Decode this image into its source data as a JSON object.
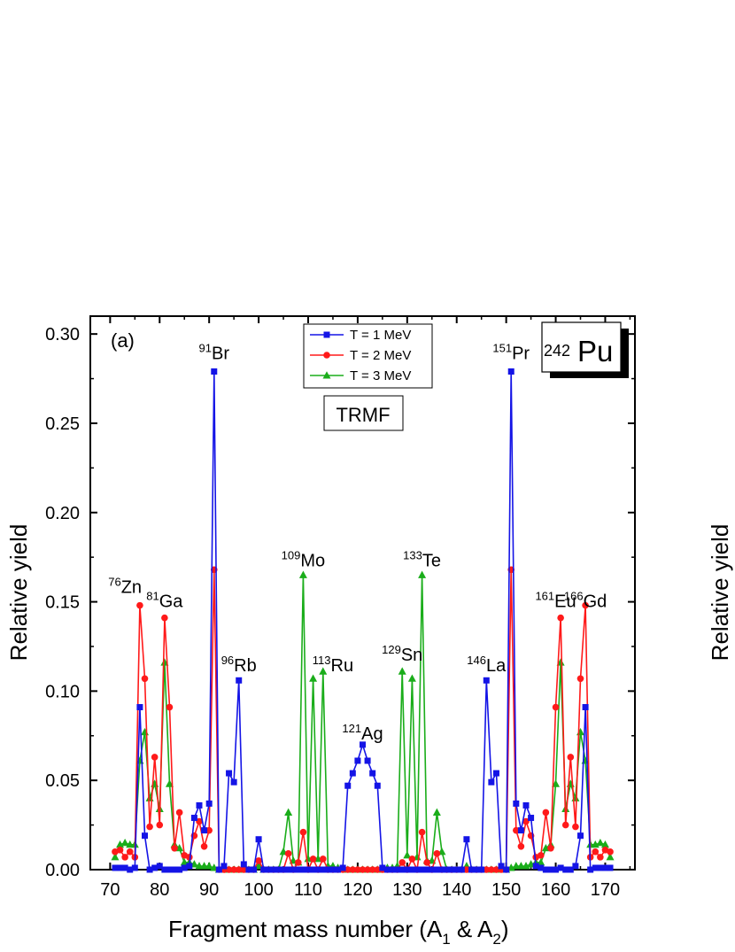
{
  "chart_data": {
    "type": "line",
    "panel_label": "(a)",
    "model_label": "TRMF",
    "nucleus": {
      "mass": "242",
      "symbol": "Pu"
    },
    "xlabel": {
      "main": "Fragment mass number (A",
      "sub1": "1",
      "mid": " & A",
      "sub2": "2",
      "end": ")"
    },
    "ylabel": "Relative yield",
    "right_ylabel": "Relative yield",
    "xlim": [
      66,
      176
    ],
    "ylim": [
      0,
      0.31
    ],
    "x_ticks": [
      70,
      80,
      90,
      100,
      110,
      120,
      130,
      140,
      150,
      160,
      170
    ],
    "y_ticks": [
      "0.00",
      "0.05",
      "0.10",
      "0.15",
      "0.20",
      "0.25",
      "0.30"
    ],
    "y_tick_values": [
      0,
      0.05,
      0.1,
      0.15,
      0.2,
      0.25,
      0.3
    ],
    "legend_position": "top-center",
    "series": [
      {
        "name": "T = 1 MeV",
        "color": "#1414e6",
        "marker": "square",
        "x": [
          71,
          72,
          73,
          74,
          75,
          76,
          77,
          78,
          79,
          80,
          81,
          82,
          83,
          84,
          85,
          86,
          87,
          88,
          89,
          90,
          91,
          92,
          93,
          94,
          95,
          96,
          97,
          98,
          99,
          100,
          101,
          102,
          103,
          104,
          105,
          106,
          107,
          108,
          109,
          110,
          111,
          112,
          113,
          114,
          115,
          116,
          117,
          118,
          119,
          120,
          121,
          122,
          123,
          124,
          125,
          126,
          127,
          128,
          129,
          130,
          131,
          132,
          133,
          134,
          135,
          136,
          137,
          138,
          139,
          140,
          141,
          142,
          143,
          144,
          145,
          146,
          147,
          148,
          149,
          150,
          151,
          152,
          153,
          154,
          155,
          156,
          157,
          158,
          159,
          160,
          161,
          162,
          163,
          164,
          165,
          166,
          167,
          168,
          169,
          170,
          171
        ],
        "y": [
          0.001,
          0.001,
          0.001,
          0,
          0.001,
          0.091,
          0.019,
          0,
          0.001,
          0.002,
          0,
          0,
          0,
          0,
          0.001,
          0.002,
          0.029,
          0.036,
          0.022,
          0.037,
          0.279,
          0,
          0.002,
          0.054,
          0.049,
          0.106,
          0.003,
          0,
          0,
          0.017,
          0,
          0,
          0,
          0,
          0,
          0,
          0,
          0,
          0,
          0,
          0,
          0,
          0,
          0,
          0,
          0,
          0.001,
          0.047,
          0.054,
          0.061,
          0.07,
          0.061,
          0.054,
          0.047,
          0.001,
          0,
          0,
          0,
          0,
          0,
          0,
          0,
          0,
          0,
          0,
          0,
          0,
          0,
          0,
          0,
          0,
          0.017,
          0,
          0,
          0,
          0.106,
          0.049,
          0.054,
          0.002,
          0,
          0.279,
          0.037,
          0.022,
          0.036,
          0.029,
          0.002,
          0.001,
          0,
          0,
          0,
          0.001,
          0,
          0,
          0.002,
          0.019,
          0.091,
          0,
          0.001,
          0.001,
          0.001,
          0.001
        ]
      },
      {
        "name": "T = 2 MeV",
        "color": "#ff1a1a",
        "marker": "circle",
        "x": [
          71,
          72,
          73,
          74,
          75,
          76,
          77,
          78,
          79,
          80,
          81,
          82,
          83,
          84,
          85,
          86,
          87,
          88,
          89,
          90,
          91,
          92,
          93,
          94,
          95,
          96,
          97,
          98,
          99,
          100,
          101,
          102,
          103,
          104,
          105,
          106,
          107,
          108,
          109,
          110,
          111,
          112,
          113,
          114,
          115,
          116,
          117,
          118,
          119,
          120,
          121,
          122,
          123,
          124,
          125,
          126,
          127,
          128,
          129,
          130,
          131,
          132,
          133,
          134,
          135,
          136,
          137,
          138,
          139,
          140,
          141,
          142,
          143,
          144,
          145,
          146,
          147,
          148,
          149,
          150,
          151,
          152,
          153,
          154,
          155,
          156,
          157,
          158,
          159,
          160,
          161,
          162,
          163,
          164,
          165,
          166,
          167,
          168,
          169,
          170,
          171
        ],
        "y": [
          0.01,
          0.011,
          0.007,
          0.01,
          0.007,
          0.148,
          0.107,
          0.024,
          0.063,
          0.025,
          0.141,
          0.091,
          0.012,
          0.032,
          0.008,
          0.007,
          0.019,
          0.027,
          0.013,
          0.022,
          0.168,
          0,
          0,
          0,
          0,
          0,
          0,
          0,
          0,
          0.005,
          0,
          0,
          0,
          0,
          0,
          0.009,
          0,
          0.004,
          0.021,
          0,
          0.006,
          0,
          0.006,
          0,
          0,
          0,
          0,
          0,
          0,
          0,
          0,
          0,
          0,
          0,
          0,
          0,
          0,
          0,
          0.004,
          0,
          0.006,
          0,
          0.021,
          0.004,
          0,
          0.009,
          0,
          0,
          0,
          0,
          0,
          0,
          0,
          0,
          0,
          0,
          0,
          0,
          0,
          0,
          0.168,
          0.022,
          0.013,
          0.027,
          0.019,
          0.007,
          0.008,
          0.032,
          0.012,
          0.091,
          0.141,
          0.025,
          0.063,
          0.024,
          0.107,
          0.148,
          0.007,
          0.01,
          0.007,
          0.011,
          0.01
        ]
      },
      {
        "name": "T = 3 MeV",
        "color": "#1aad1a",
        "marker": "triangle",
        "x": [
          71,
          72,
          73,
          74,
          75,
          76,
          77,
          78,
          79,
          80,
          81,
          82,
          83,
          84,
          85,
          86,
          87,
          88,
          89,
          90,
          91,
          92,
          93,
          94,
          95,
          96,
          97,
          98,
          99,
          100,
          101,
          102,
          103,
          104,
          105,
          106,
          107,
          108,
          109,
          110,
          111,
          112,
          113,
          114,
          115,
          116,
          117,
          118,
          119,
          120,
          121,
          122,
          123,
          124,
          125,
          126,
          127,
          128,
          129,
          130,
          131,
          132,
          133,
          134,
          135,
          136,
          137,
          138,
          139,
          140,
          141,
          142,
          143,
          144,
          145,
          146,
          147,
          148,
          149,
          150,
          151,
          152,
          153,
          154,
          155,
          156,
          157,
          158,
          159,
          160,
          161,
          162,
          163,
          164,
          165,
          166,
          167,
          168,
          169,
          170,
          171
        ],
        "y": [
          0.007,
          0.014,
          0.015,
          0.014,
          0.014,
          0.061,
          0.077,
          0.04,
          0.048,
          0.034,
          0.116,
          0.048,
          0.014,
          0.012,
          0.004,
          0.004,
          0.003,
          0.002,
          0.002,
          0.002,
          0.001,
          0,
          0,
          0,
          0,
          0,
          0,
          0,
          0,
          0.002,
          0,
          0,
          0,
          0,
          0.01,
          0.032,
          0.005,
          0.004,
          0.165,
          0.006,
          0.107,
          0.006,
          0.111,
          0.002,
          0.002,
          0.001,
          0.001,
          0,
          0,
          0,
          0,
          0,
          0,
          0,
          0,
          0.001,
          0.001,
          0.002,
          0.111,
          0.008,
          0.107,
          0.007,
          0.165,
          0.005,
          0.005,
          0.032,
          0.01,
          0,
          0,
          0,
          0,
          0.002,
          0,
          0,
          0,
          0,
          0,
          0,
          0,
          0,
          0.001,
          0.002,
          0.002,
          0.002,
          0.003,
          0.004,
          0.004,
          0.012,
          0.014,
          0.048,
          0.116,
          0.034,
          0.048,
          0.04,
          0.077,
          0.061,
          0.014,
          0.014,
          0.015,
          0.014,
          0.007
        ]
      }
    ],
    "annotations": [
      {
        "mass": "91",
        "symbol": "Br",
        "x": 91,
        "y": 0.286
      },
      {
        "mass": "151",
        "symbol": "Pr",
        "x": 151,
        "y": 0.286
      },
      {
        "mass": "76",
        "symbol": "Zn",
        "x": 73,
        "y": 0.155
      },
      {
        "mass": "81",
        "symbol": "Ga",
        "x": 81,
        "y": 0.147
      },
      {
        "mass": "96",
        "symbol": "Rb",
        "x": 96,
        "y": 0.111
      },
      {
        "mass": "109",
        "symbol": "Mo",
        "x": 109,
        "y": 0.17
      },
      {
        "mass": "113",
        "symbol": "Ru",
        "x": 115,
        "y": 0.111
      },
      {
        "mass": "121",
        "symbol": "Ag",
        "x": 121,
        "y": 0.073
      },
      {
        "mass": "129",
        "symbol": "Sn",
        "x": 129,
        "y": 0.117
      },
      {
        "mass": "133",
        "symbol": "Te",
        "x": 133,
        "y": 0.17
      },
      {
        "mass": "146",
        "symbol": "La",
        "x": 146,
        "y": 0.111
      },
      {
        "mass": "161",
        "symbol": "Eu",
        "x": 160,
        "y": 0.147
      },
      {
        "mass": "166",
        "symbol": "Gd",
        "x": 166,
        "y": 0.147
      }
    ]
  }
}
